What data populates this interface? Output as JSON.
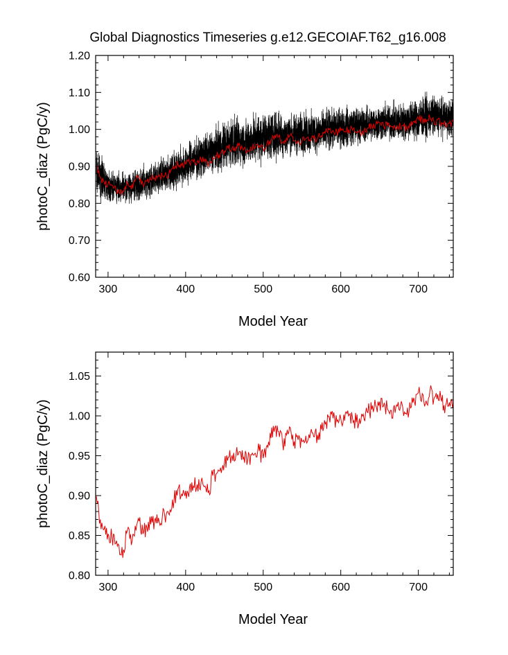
{
  "title": "Global Diagnostics Timeseries g.e12.GECOIAF.T62_g16.008",
  "colors": {
    "raw": "#000000",
    "smoothed": "#e00000",
    "axis": "#000000"
  },
  "chart_data": [
    {
      "type": "line",
      "xlabel": "Model Year",
      "ylabel": "photoC_diaz (PgC/y)",
      "xlim": [
        284,
        745
      ],
      "ylim": [
        0.6,
        1.2
      ],
      "xticks": [
        300,
        400,
        500,
        600,
        700
      ],
      "yticks": [
        "0.60",
        "0.70",
        "0.80",
        "0.90",
        "1.00",
        "1.10",
        "1.20"
      ],
      "series": [
        {
          "color": "#000000",
          "style": "monthly",
          "envelope": {
            "x": [
              285,
              300,
              320,
              340,
              360,
              380,
              400,
              420,
              440,
              460,
              480,
              500,
              520,
              540,
              560,
              580,
              600,
              620,
              640,
              660,
              680,
              700,
              720,
              745
            ],
            "low": [
              0.8,
              0.79,
              0.79,
              0.79,
              0.8,
              0.82,
              0.83,
              0.85,
              0.86,
              0.87,
              0.88,
              0.89,
              0.9,
              0.91,
              0.91,
              0.92,
              0.93,
              0.94,
              0.95,
              0.95,
              0.95,
              0.95,
              0.96,
              0.96
            ],
            "high": [
              0.97,
              0.91,
              0.89,
              0.91,
              0.93,
              0.95,
              0.98,
              1.0,
              1.03,
              1.06,
              1.05,
              1.07,
              1.07,
              1.06,
              1.07,
              1.07,
              1.08,
              1.08,
              1.08,
              1.09,
              1.09,
              1.11,
              1.11,
              1.1
            ]
          }
        },
        {
          "color": "#e00000",
          "style": "annual",
          "x": [
            285,
            290,
            295,
            300,
            305,
            310,
            315,
            320,
            325,
            330,
            335,
            340,
            345,
            350,
            355,
            360,
            365,
            370,
            375,
            380,
            385,
            390,
            395,
            400,
            405,
            410,
            415,
            420,
            425,
            430,
            435,
            440,
            445,
            450,
            455,
            460,
            465,
            470,
            475,
            480,
            485,
            490,
            495,
            500,
            505,
            510,
            515,
            520,
            525,
            530,
            535,
            540,
            545,
            550,
            555,
            560,
            565,
            570,
            575,
            580,
            585,
            590,
            595,
            600,
            605,
            610,
            615,
            620,
            625,
            630,
            635,
            640,
            645,
            650,
            655,
            660,
            665,
            670,
            675,
            680,
            685,
            690,
            695,
            700,
            705,
            710,
            715,
            720,
            725,
            730,
            735,
            740,
            745
          ],
          "values": [
            0.899,
            0.87,
            0.858,
            0.852,
            0.848,
            0.84,
            0.826,
            0.832,
            0.857,
            0.838,
            0.862,
            0.868,
            0.852,
            0.86,
            0.864,
            0.869,
            0.872,
            0.874,
            0.876,
            0.882,
            0.893,
            0.908,
            0.902,
            0.906,
            0.91,
            0.912,
            0.914,
            0.918,
            0.912,
            0.906,
            0.925,
            0.928,
            0.935,
            0.941,
            0.948,
            0.95,
            0.952,
            0.955,
            0.948,
            0.944,
            0.951,
            0.953,
            0.956,
            0.947,
            0.963,
            0.972,
            0.985,
            0.98,
            0.965,
            0.976,
            0.985,
            0.968,
            0.97,
            0.968,
            0.975,
            0.972,
            0.974,
            0.976,
            0.983,
            0.99,
            0.999,
            0.997,
            0.993,
            0.997,
            0.994,
            1.0,
            0.998,
            0.992,
            0.99,
            0.996,
            1.004,
            1.008,
            1.013,
            1.018,
            1.012,
            1.01,
            1.007,
            1.004,
            1.008,
            1.01,
            1.002,
            1.01,
            1.018,
            1.029,
            1.028,
            1.019,
            1.032,
            1.021,
            1.027,
            1.018,
            1.013,
            1.017,
            1.015
          ]
        }
      ]
    },
    {
      "type": "line",
      "xlabel": "Model Year",
      "ylabel": "photoC_diaz (PgC/y)",
      "xlim": [
        284,
        745
      ],
      "ylim": [
        0.8,
        1.08
      ],
      "xticks": [
        300,
        400,
        500,
        600,
        700
      ],
      "yticks": [
        "0.80",
        "0.85",
        "0.90",
        "0.95",
        "1.00",
        "1.05"
      ],
      "series": [
        {
          "color": "#e00000",
          "style": "annual",
          "x": [
            285,
            290,
            295,
            300,
            305,
            310,
            315,
            320,
            325,
            330,
            335,
            340,
            345,
            350,
            355,
            360,
            365,
            370,
            375,
            380,
            385,
            390,
            395,
            400,
            405,
            410,
            415,
            420,
            425,
            430,
            435,
            440,
            445,
            450,
            455,
            460,
            465,
            470,
            475,
            480,
            485,
            490,
            495,
            500,
            505,
            510,
            515,
            520,
            525,
            530,
            535,
            540,
            545,
            550,
            555,
            560,
            565,
            570,
            575,
            580,
            585,
            590,
            595,
            600,
            605,
            610,
            615,
            620,
            625,
            630,
            635,
            640,
            645,
            650,
            655,
            660,
            665,
            670,
            675,
            680,
            685,
            690,
            695,
            700,
            705,
            710,
            715,
            720,
            725,
            730,
            735,
            740,
            745
          ],
          "values": [
            0.899,
            0.87,
            0.858,
            0.852,
            0.848,
            0.84,
            0.826,
            0.832,
            0.857,
            0.838,
            0.862,
            0.868,
            0.852,
            0.86,
            0.864,
            0.869,
            0.872,
            0.874,
            0.876,
            0.882,
            0.893,
            0.908,
            0.902,
            0.906,
            0.91,
            0.912,
            0.914,
            0.918,
            0.912,
            0.906,
            0.925,
            0.928,
            0.935,
            0.941,
            0.948,
            0.95,
            0.952,
            0.955,
            0.948,
            0.944,
            0.951,
            0.953,
            0.956,
            0.947,
            0.963,
            0.972,
            0.985,
            0.98,
            0.965,
            0.976,
            0.985,
            0.968,
            0.97,
            0.968,
            0.975,
            0.972,
            0.974,
            0.976,
            0.983,
            0.99,
            0.999,
            0.997,
            0.993,
            0.997,
            0.994,
            1.0,
            0.998,
            0.992,
            0.99,
            0.996,
            1.004,
            1.008,
            1.013,
            1.018,
            1.012,
            1.01,
            1.007,
            1.004,
            1.008,
            1.01,
            1.002,
            1.01,
            1.018,
            1.029,
            1.028,
            1.019,
            1.032,
            1.021,
            1.027,
            1.018,
            1.013,
            1.017,
            1.015
          ]
        }
      ]
    }
  ]
}
